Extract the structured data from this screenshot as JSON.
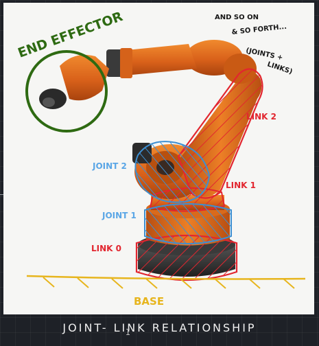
{
  "labels": {
    "end_effector": "END EFFECTOR",
    "note_line1": "AND SO ON",
    "note_line2": "& SO FORTH...",
    "note_line3": "(JOINTS +",
    "note_line4": "LINKS)",
    "link2": "LINK 2",
    "link1": "LINK 1",
    "link0": "LINK 0",
    "joint2": "JOINT 2",
    "joint1": "JOINT 1",
    "base": "BASE"
  },
  "caption": "JOINT- LINK RELATIONSHIP",
  "cursor_glyph": "I",
  "colors": {
    "link_red": "#e2262f",
    "joint_blue": "#3d8fd1",
    "joint_label_blue": "#5aa6e6",
    "effector_green": "#2e6a12",
    "base_yellow": "#e7b51d",
    "robot_orange": "#e06a16",
    "robot_dark": "#2c2c2c",
    "caption_white": "#f1f1f1"
  }
}
